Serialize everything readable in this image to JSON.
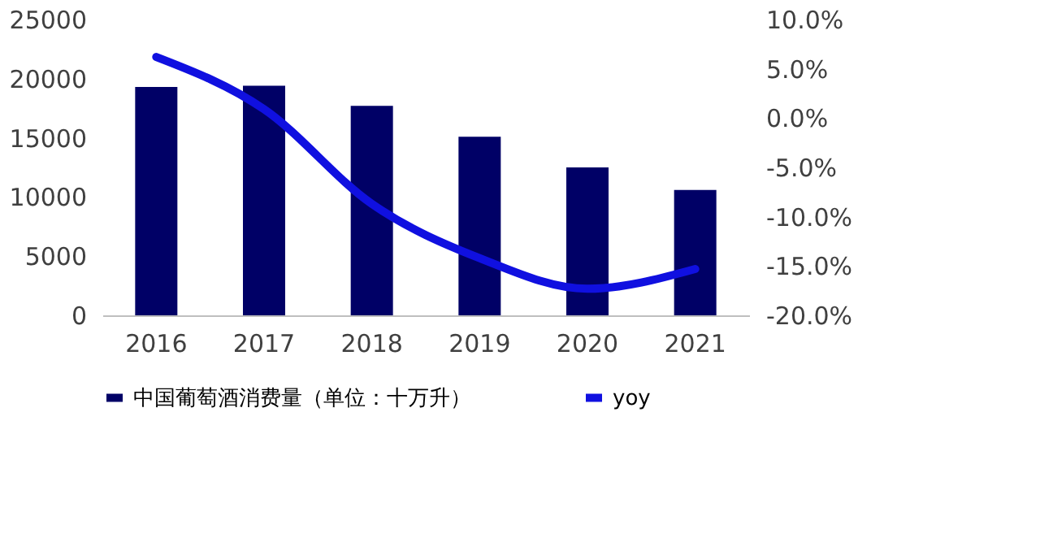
{
  "chart_data": {
    "type": "bar",
    "categories": [
      "2016",
      "2017",
      "2018",
      "2019",
      "2020",
      "2021"
    ],
    "series": [
      {
        "name": "中国葡萄酒消费量（单位：十万升）",
        "color": "#000066",
        "values": [
          19300,
          19400,
          17700,
          15100,
          12500,
          10600
        ]
      },
      {
        "name": "yoy",
        "type": "line",
        "axis": "y2",
        "color": "#1010e0",
        "values": [
          6.2,
          0.9,
          -8.7,
          -14.2,
          -17.3,
          -15.3
        ]
      }
    ],
    "ylim": [
      0,
      25000
    ],
    "yticks": [
      0,
      5000,
      10000,
      15000,
      20000,
      25000
    ],
    "y2lim": [
      -20,
      10
    ],
    "y2ticks": [
      {
        "value": -20,
        "label": "-20.0%"
      },
      {
        "value": -15,
        "label": "-15.0%"
      },
      {
        "value": -10,
        "label": "-10.0%"
      },
      {
        "value": -5,
        "label": "-5.0%"
      },
      {
        "value": 0,
        "label": "0.0%"
      },
      {
        "value": 5,
        "label": "5.0%"
      },
      {
        "value": 10,
        "label": "10.0%"
      }
    ],
    "grid": false,
    "legend": "bottom",
    "marker": "none",
    "line_style": "solid"
  }
}
